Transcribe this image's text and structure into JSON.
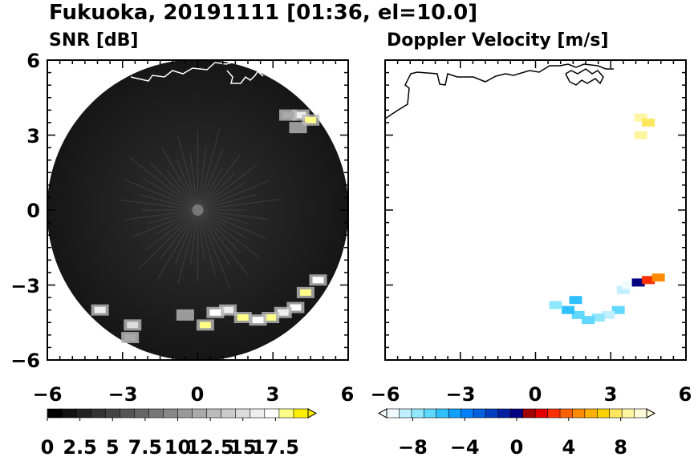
{
  "figure_title": "Fukuoka, 20191111 [01:36, el=10.0]",
  "chart_data": [
    {
      "type": "heatmap",
      "title": "SNR [dB]",
      "xlim": [
        -6,
        6
      ],
      "ylim": [
        -6,
        6
      ],
      "x_ticks": [
        "−6",
        "−3",
        "0",
        "3",
        "6"
      ],
      "y_ticks": [
        "6",
        "3",
        "0",
        "−3",
        "−6"
      ],
      "colorbar": {
        "range": [
          0,
          20
        ],
        "tick_labels": [
          "0",
          "2.5",
          "5",
          "7.5",
          "10",
          "12.5",
          "15",
          "17.5"
        ],
        "colors": [
          "#000000",
          "#111111",
          "#222222",
          "#333333",
          "#444444",
          "#555555",
          "#666666",
          "#777777",
          "#888888",
          "#999999",
          "#aaaaaa",
          "#bbbbbb",
          "#cccccc",
          "#dddddd",
          "#eeeeee",
          "#ffffff",
          "#ffff88",
          "#ffee00"
        ]
      },
      "echoes": [
        {
          "x": 4.1,
          "y": 3.8,
          "snr": 16
        },
        {
          "x": 4.5,
          "y": 3.6,
          "snr": 18
        },
        {
          "x": 3.6,
          "y": 3.8,
          "snr": 12
        },
        {
          "x": 4.0,
          "y": 3.3,
          "snr": 10
        },
        {
          "x": 3.9,
          "y": -3.9,
          "snr": 17
        },
        {
          "x": 4.3,
          "y": -3.3,
          "snr": 18
        },
        {
          "x": 4.8,
          "y": -2.8,
          "snr": 17
        },
        {
          "x": 3.4,
          "y": -4.1,
          "snr": 16
        },
        {
          "x": 2.9,
          "y": -4.3,
          "snr": 18
        },
        {
          "x": 2.4,
          "y": -4.4,
          "snr": 17
        },
        {
          "x": 1.8,
          "y": -4.3,
          "snr": 18
        },
        {
          "x": 1.2,
          "y": -4.0,
          "snr": 16
        },
        {
          "x": 0.7,
          "y": -4.1,
          "snr": 17
        },
        {
          "x": 0.3,
          "y": -4.6,
          "snr": 18
        },
        {
          "x": -0.5,
          "y": -4.2,
          "snr": 10
        },
        {
          "x": -3.9,
          "y": -4.0,
          "snr": 16
        },
        {
          "x": -2.6,
          "y": -4.6,
          "snr": 15
        },
        {
          "x": -2.7,
          "y": -5.1,
          "snr": 12
        }
      ]
    },
    {
      "type": "heatmap",
      "title": "Doppler Velocity [m/s]",
      "xlim": [
        -6,
        6
      ],
      "ylim": [
        -6,
        6
      ],
      "x_ticks": [
        "−6",
        "−3",
        "0",
        "3",
        "6"
      ],
      "colorbar": {
        "range": [
          -10,
          10
        ],
        "tick_labels": [
          "−8",
          "−4",
          "0",
          "4",
          "8"
        ],
        "colors": [
          "#f0fbff",
          "#c0f0ff",
          "#90e8ff",
          "#60d8ff",
          "#30c0ff",
          "#10a0ff",
          "#0080ff",
          "#0060e0",
          "#0040c0",
          "#0020a0",
          "#000080",
          "#a00000",
          "#e00000",
          "#ff3000",
          "#ff6000",
          "#ff8c00",
          "#ffb000",
          "#ffd000",
          "#ffe860",
          "#fff4a0",
          "#fffcd8"
        ]
      },
      "echoes": [
        {
          "x": 4.2,
          "y": 3.7,
          "v": 9
        },
        {
          "x": 4.5,
          "y": 3.5,
          "v": 8
        },
        {
          "x": 4.2,
          "y": 3.0,
          "v": 9
        },
        {
          "x": 3.5,
          "y": -3.2,
          "v": -9
        },
        {
          "x": 3.7,
          "y": -3.0,
          "v": -10
        },
        {
          "x": 4.1,
          "y": -2.9,
          "v": 0
        },
        {
          "x": 4.5,
          "y": -2.8,
          "v": 3
        },
        {
          "x": 4.9,
          "y": -2.7,
          "v": 5
        },
        {
          "x": 3.3,
          "y": -4.0,
          "v": -7
        },
        {
          "x": 2.9,
          "y": -4.2,
          "v": -9
        },
        {
          "x": 2.5,
          "y": -4.3,
          "v": -8
        },
        {
          "x": 2.1,
          "y": -4.4,
          "v": -7
        },
        {
          "x": 1.7,
          "y": -4.2,
          "v": -7
        },
        {
          "x": 1.3,
          "y": -4.0,
          "v": -6
        },
        {
          "x": 1.6,
          "y": -3.6,
          "v": -6
        },
        {
          "x": 0.8,
          "y": -3.8,
          "v": -8
        }
      ]
    }
  ]
}
